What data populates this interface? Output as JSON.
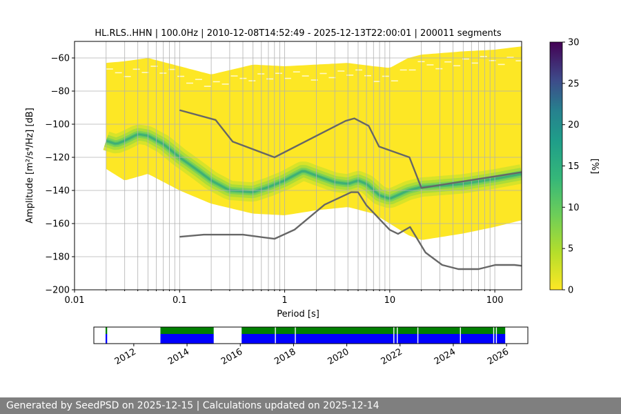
{
  "chart_data": {
    "type": "heatmap",
    "title": "HL.RLS..HHN | 100.0Hz | 2010-12-08T14:52:49 - 2025-12-13T22:00:01 | 200011 segments",
    "xlabel": "Period [s]",
    "ylabel": "Amplitude [m²/s⁴/Hz] [dB]",
    "x_scale": "log",
    "xlim": [
      0.01,
      180
    ],
    "ylim": [
      -200,
      -50
    ],
    "x_ticks": [
      0.01,
      0.1,
      1,
      10,
      100
    ],
    "x_tick_labels": [
      "0.01",
      "0.1",
      "1",
      "10",
      "100"
    ],
    "y_ticks": [
      -200,
      -180,
      -160,
      -140,
      -120,
      -100,
      -80,
      -60
    ],
    "y_tick_labels": [
      "−200",
      "−180",
      "−160",
      "−140",
      "−120",
      "−100",
      "−80",
      "−60"
    ],
    "density_mode": {
      "period": [
        0.02,
        0.025,
        0.03,
        0.04,
        0.05,
        0.07,
        0.1,
        0.15,
        0.2,
        0.3,
        0.5,
        0.7,
        1,
        1.5,
        2,
        3,
        4,
        5,
        6,
        8,
        10,
        15,
        20,
        50,
        100,
        180
      ],
      "db": [
        -110,
        -112,
        -110,
        -106,
        -107,
        -112,
        -120,
        -128,
        -134,
        -140,
        -141,
        -138,
        -134,
        -128,
        -131,
        -135,
        -136,
        -134,
        -136,
        -143,
        -145,
        -140,
        -138,
        -136,
        -133,
        -130
      ]
    },
    "data_envelope": {
      "period": [
        0.02,
        0.03,
        0.05,
        0.1,
        0.2,
        0.5,
        1,
        2,
        4,
        7,
        10,
        15,
        20,
        50,
        100,
        180
      ],
      "upper_db": [
        -63,
        -62,
        -60,
        -65,
        -70,
        -64,
        -65,
        -64,
        -63,
        -65,
        -66,
        -60,
        -58,
        -56,
        -55,
        -53
      ],
      "lower_db": [
        -127,
        -134,
        -130,
        -140,
        -148,
        -154,
        -155,
        -152,
        -150,
        -154,
        -160,
        -167,
        -170,
        -166,
        -162,
        -158
      ]
    },
    "nhnm": {
      "period": [
        0.1,
        0.22,
        0.32,
        0.8,
        3.8,
        4.6,
        6.3,
        7.9,
        15.4,
        20,
        180
      ],
      "db": [
        -91.5,
        -97.4,
        -110.5,
        -120,
        -98,
        -96.5,
        -101,
        -113.5,
        -120,
        -138.5,
        -129
      ]
    },
    "nlnm": {
      "period": [
        0.1,
        0.17,
        0.4,
        0.8,
        1.24,
        2.4,
        4.3,
        5,
        6,
        10,
        12,
        15.6,
        21.9,
        31.6,
        45,
        70,
        101,
        154,
        180
      ],
      "db": [
        -168,
        -166.7,
        -166.7,
        -169.2,
        -163.7,
        -148.6,
        -141.1,
        -141.1,
        -149,
        -163.8,
        -166.2,
        -162.1,
        -177.5,
        -185,
        -187.5,
        -187.5,
        -185,
        -185,
        -185.5
      ]
    },
    "colorbar": {
      "label": "[%]",
      "min": 0,
      "max": 30,
      "ticks": [
        "0",
        "5",
        "10",
        "15",
        "20",
        "25",
        "30"
      ]
    },
    "timeline": {
      "years": [
        "2012",
        "2014",
        "2016",
        "2018",
        "2020",
        "2022",
        "2024",
        "2026"
      ],
      "range": [
        2010.5,
        2026.8
      ],
      "coverage": [
        [
          2010.94,
          2011.0
        ],
        [
          2013.0,
          2015.0
        ],
        [
          2016.05,
          2025.95
        ]
      ],
      "gaps": [
        2017.3,
        2018.05,
        2021.75,
        2021.88,
        2022.65,
        2024.25,
        2025.5,
        2025.6
      ]
    },
    "colors": {
      "nm_line": "#666666",
      "coverage_green": "#008000",
      "coverage_blue": "#0000ff"
    }
  },
  "footer": {
    "text": "Generated by SeedPSD on 2025-12-15 | Calculations updated on 2025-12-14"
  }
}
